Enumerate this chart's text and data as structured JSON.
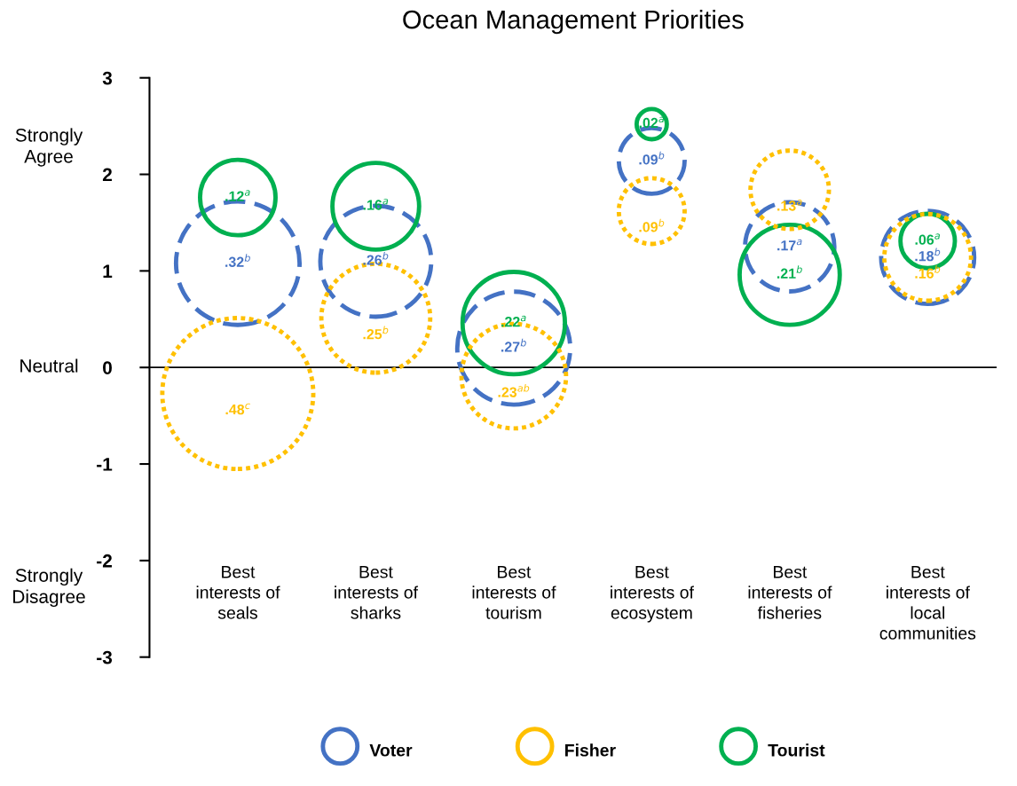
{
  "chart_data": {
    "type": "bubble",
    "title": "Ocean Management Priorities",
    "categories": [
      "Best\ninterests of\nseals",
      "Best\ninterests of\nsharks",
      "Best\ninterests of\ntourism",
      "Best\ninterests of\necosystem",
      "Best\ninterests of\nfisheries",
      "Best\ninterests of\nlocal\ncommunities"
    ],
    "series": [
      {
        "name": "Voter",
        "color": "#4472c4",
        "line_style": "dashed",
        "values": [
          1.08,
          1.1,
          0.2,
          2.14,
          1.25,
          1.14
        ],
        "sizes": [
          0.67,
          0.54,
          0.56,
          0.19,
          0.35,
          0.38
        ]
      },
      {
        "name": "Fisher",
        "color": "#ffc000",
        "line_style": "dotted",
        "values": [
          -0.27,
          0.51,
          -0.09,
          1.62,
          1.84,
          1.14
        ],
        "sizes": [
          1,
          0.52,
          0.48,
          0.19,
          0.27,
          0.33
        ]
      },
      {
        "name": "Tourist",
        "color": "#00b050",
        "line_style": "solid",
        "values": [
          1.76,
          1.67,
          0.46,
          2.52,
          0.96,
          1.31
        ],
        "sizes": [
          0.25,
          0.33,
          0.46,
          0.04,
          0.44,
          0.13
        ]
      }
    ],
    "ylim": [
      -3,
      3
    ],
    "yticks": [
      -3,
      -2,
      -1,
      0,
      1,
      2,
      3
    ],
    "ref_lines": [
      {
        "axis": "y",
        "value": 0,
        "color": "#000000"
      }
    ],
    "annotations": [
      {
        "text": ".32$^{b}$",
        "x": "Best\ninterests of\nseals",
        "y": 1.08
      },
      {
        "text": ".26$^{b}$",
        "x": "Best\ninterests of\nsharks",
        "y": 1.1
      },
      {
        "text": ".27$^{b}$",
        "x": "Best\ninterests of\ntourism",
        "y": 0.2
      },
      {
        "text": ".09$^{b}$",
        "x": "Best\ninterests of\necosystem",
        "y": 2.14
      },
      {
        "text": ".17$^{a}$",
        "x": "Best\ninterests of\nfisheries",
        "y": 1.25
      },
      {
        "text": ".18$^{b}$",
        "x": "Best\ninterests of\nlocal\ncommunities",
        "y": 1.14
      },
      {
        "text": ".48$^{c}$",
        "x": "Best\ninterests of\nseals",
        "y": -0.27
      },
      {
        "text": ".25$^{b}$",
        "x": "Best\ninterests of\nsharks",
        "y": 0.51
      },
      {
        "text": ".23$^{ab}$",
        "x": "Best\ninterests of\ntourism",
        "y": -0.09
      },
      {
        "text": ".09$^{b}$",
        "x": "Best\ninterests of\necosystem",
        "y": 1.62
      },
      {
        "text": ".13$^{a}$",
        "x": "Best\ninterests of\nfisheries",
        "y": 1.84
      },
      {
        "text": ".16$^{b}$",
        "x": "Best\ninterests of\nlocal\ncommunities",
        "y": 1.14
      },
      {
        "text": ".12$^{a}$",
        "x": "Best\ninterests of\nseals",
        "y": 1.76
      },
      {
        "text": ".16$^{a}$",
        "x": "Best\ninterests of\nsharks",
        "y": 1.67
      },
      {
        "text": ".22$^{a}$",
        "x": "Best\ninterests of\ntourism",
        "y": 0.46
      },
      {
        "text": ".02$^{a}$",
        "x": "Best\ninterests of\necosystem",
        "y": 2.52
      },
      {
        "text": ".21$^{b}$",
        "x": "Best\ninterests of\nfisheries",
        "y": 0.96
      },
      {
        "text": ".06$^{a}$",
        "x": "Best\ninterests of\nlocal\ncommunities",
        "y": 1.31
      },
      "Strongly\nAgree",
      "Neutral",
      "Strongly\nDisagree"
    ],
    "legend": "bottom",
    "grid": false
  }
}
